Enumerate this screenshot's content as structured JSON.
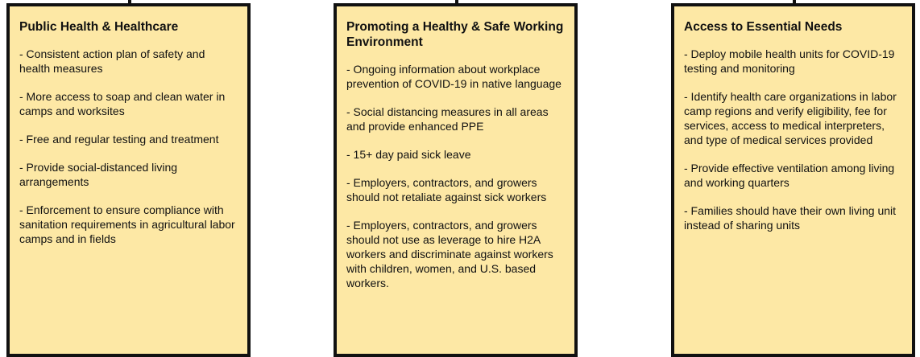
{
  "columns": [
    {
      "title": "Public Health & Healthcare",
      "items": [
        "- Consistent action plan of safety and health measures",
        "- More access to soap and clean water in camps and worksites",
        "- Free and regular testing and treatment",
        "- Provide social-distanced living arrangements",
        "- Enforcement to ensure compliance with sanitation requirements in agricultural labor camps and in fields"
      ]
    },
    {
      "title": "Promoting a Healthy & Safe Working Environment",
      "items": [
        "- Ongoing information about workplace prevention of COVID-19 in native language",
        "- Social distancing measures in all areas and provide enhanced PPE",
        "- 15+ day paid sick leave",
        "- Employers, contractors, and growers should not retaliate against sick workers",
        "- Employers, contractors, and growers should not use as leverage to hire H2A workers and discriminate against workers with children, women, and U.S. based workers."
      ]
    },
    {
      "title": "Access to Essential Needs",
      "items": [
        "- Deploy mobile health units for COVID-19 testing and monitoring",
        "- Identify health care organizations in labor camp regions and verify eligibility, fee for services, access to medical interpreters, and type of medical services provided",
        "- Provide effective ventilation among living and working quarters",
        "- Families should have their own living unit instead of sharing units"
      ]
    }
  ]
}
